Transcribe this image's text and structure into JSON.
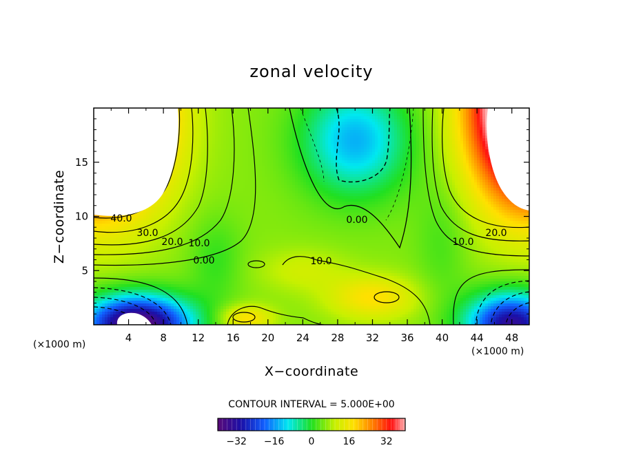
{
  "chart_data": {
    "type": "heatmap",
    "title": "zonal velocity",
    "xlabel": "X−coordinate",
    "ylabel": "Z−coordinate",
    "x_unit": "(×1000 m)",
    "z_unit": "(×1000 m)",
    "xlim": [
      0,
      50
    ],
    "ylim": [
      0,
      20
    ],
    "x_ticks": [
      "4",
      "8",
      "12",
      "16",
      "20",
      "24",
      "28",
      "32",
      "36",
      "40",
      "44",
      "48"
    ],
    "y_ticks": [
      "5",
      "10",
      "15"
    ],
    "contour_interval_label": "CONTOUR INTERVAL = 5.000E+00",
    "contour_interval": 5.0,
    "contour_labels": [
      "40.0",
      "30.0",
      "20.0",
      "10.0",
      "0.00",
      "10.0",
      "0.00",
      "10.0",
      "20.0"
    ],
    "colorbar": {
      "range": [
        -40,
        40
      ],
      "ticks": [
        "−32",
        "−16",
        "0",
        "16",
        "32"
      ]
    },
    "field_features": [
      {
        "x": 5,
        "z": 0,
        "value": -40
      },
      {
        "x": 47,
        "z": 1,
        "value": -32
      },
      {
        "x": 30,
        "z": 15,
        "value": -14
      },
      {
        "x": 3,
        "z": 17,
        "value": 55
      },
      {
        "x": 48,
        "z": 17,
        "value": 55
      },
      {
        "x": 33,
        "z": 2.5,
        "value": 18
      },
      {
        "x": 17.5,
        "z": 0.7,
        "value": 20
      },
      {
        "x": 22,
        "z": 6,
        "value": 8
      }
    ]
  }
}
